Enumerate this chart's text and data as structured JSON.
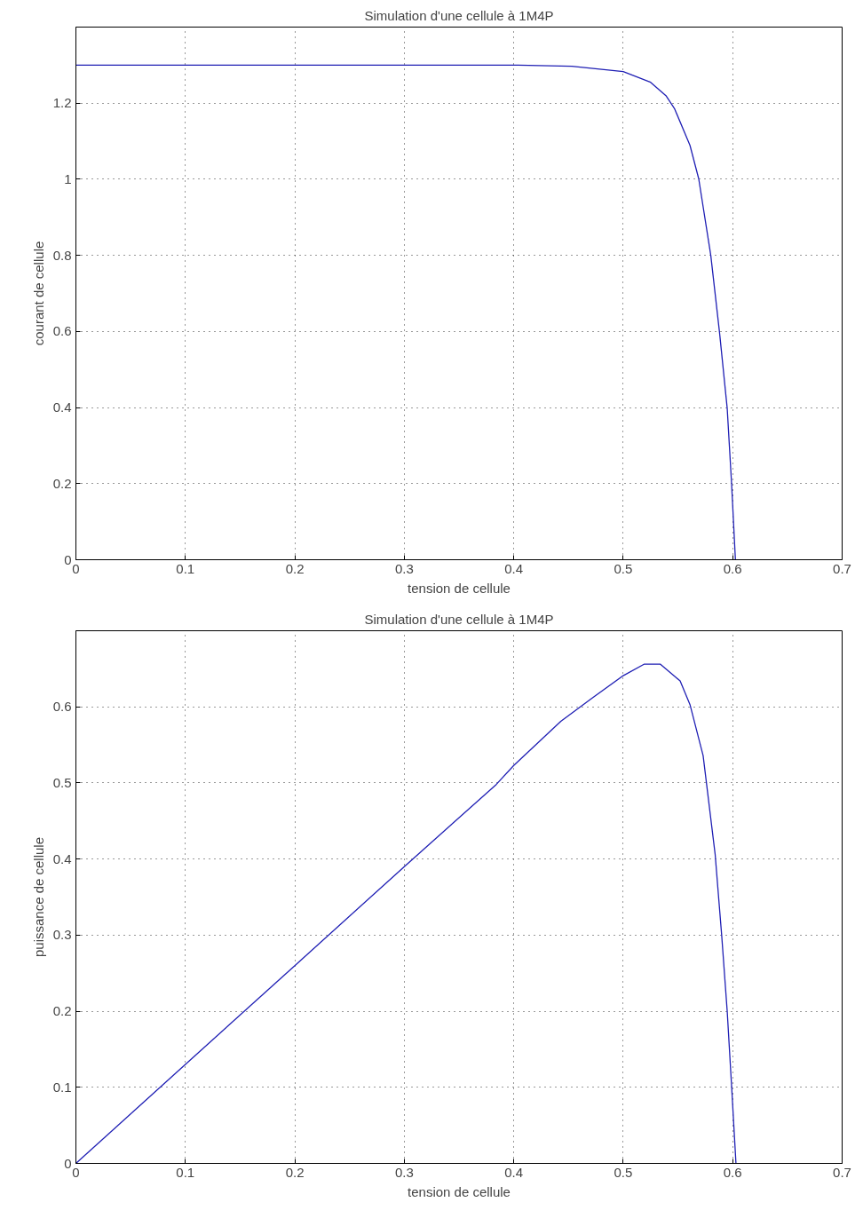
{
  "chart_data": [
    {
      "type": "line",
      "title": "Simulation d'une cellule à 1M4P",
      "xlabel": "tension de cellule",
      "ylabel": "courant de cellule",
      "xlim": [
        0,
        0.7
      ],
      "ylim": [
        0,
        1.4
      ],
      "xticks": [
        0,
        0.1,
        0.2,
        0.3,
        0.4,
        0.5,
        0.6,
        0.7
      ],
      "yticks": [
        0,
        0.2,
        0.4,
        0.6,
        0.8,
        1,
        1.2
      ],
      "grid": true,
      "x": [
        0,
        0.1,
        0.2,
        0.3,
        0.404,
        0.453,
        0.5,
        0.525,
        0.539,
        0.547,
        0.561,
        0.569,
        0.58,
        0.588,
        0.595,
        0.599,
        0.6025
      ],
      "series": [
        {
          "color": "#1f1fb4",
          "values": [
            1.3,
            1.3,
            1.3,
            1.3,
            1.3,
            1.297,
            1.283,
            1.255,
            1.22,
            1.185,
            1.089,
            1.001,
            0.8,
            0.597,
            0.398,
            0.2,
            0
          ]
        }
      ]
    },
    {
      "type": "line",
      "title": "Simulation d'une cellule à 1M4P",
      "xlabel": "tension de cellule",
      "ylabel": "puissance de cellule",
      "xlim": [
        0,
        0.7
      ],
      "ylim": [
        0,
        0.7
      ],
      "xticks": [
        0,
        0.1,
        0.2,
        0.3,
        0.4,
        0.5,
        0.6,
        0.7
      ],
      "yticks": [
        0,
        0.1,
        0.2,
        0.3,
        0.4,
        0.5,
        0.6
      ],
      "grid": true,
      "x": [
        0,
        0.1,
        0.2,
        0.3,
        0.384,
        0.4,
        0.443,
        0.472,
        0.5,
        0.519,
        0.534,
        0.552,
        0.561,
        0.573,
        0.584,
        0.59,
        0.595,
        0.599,
        0.603
      ],
      "series": [
        {
          "color": "#1f1fb4",
          "values": [
            0,
            0.13,
            0.26,
            0.39,
            0.498,
            0.523,
            0.581,
            0.612,
            0.641,
            0.656,
            0.656,
            0.634,
            0.603,
            0.536,
            0.406,
            0.299,
            0.2,
            0.102,
            0
          ]
        }
      ]
    }
  ]
}
